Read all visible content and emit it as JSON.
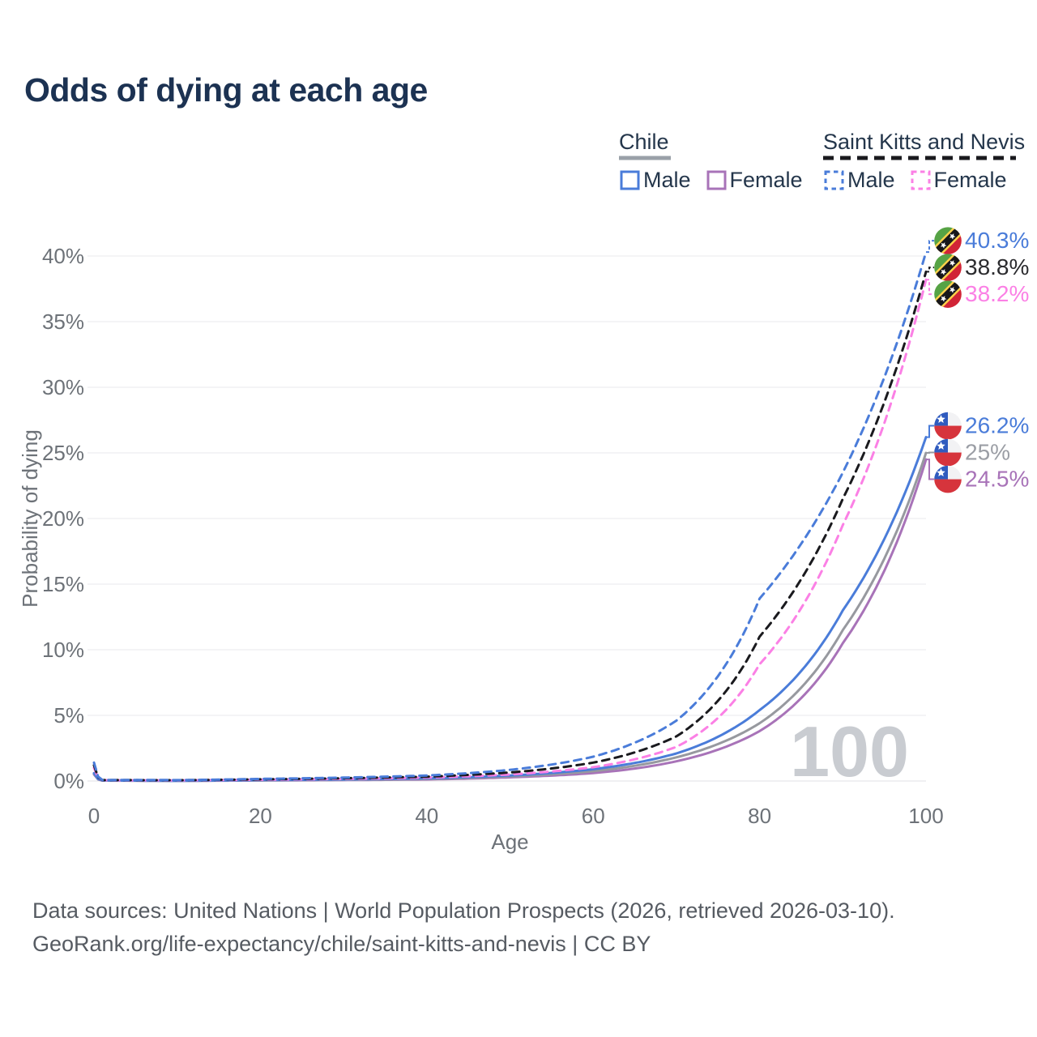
{
  "title": "Odds of dying at each age",
  "legend": {
    "groups": [
      {
        "name": "Chile",
        "line_style": "solid",
        "underline_color": "#9aa0a8",
        "items": [
          {
            "label": "Male",
            "color": "#4a7cd9"
          },
          {
            "label": "Female",
            "color": "#a873b8"
          }
        ]
      },
      {
        "name": "Saint Kitts and Nevis",
        "line_style": "dashed",
        "underline_color": "#1a1a1e",
        "items": [
          {
            "label": "Male",
            "color": "#4a7cd9"
          },
          {
            "label": "Female",
            "color": "#fb80e5"
          }
        ]
      }
    ]
  },
  "chart_data": {
    "type": "line",
    "title": "Odds of dying at each age",
    "xlabel": "Age",
    "ylabel": "Probability of dying",
    "x_ticks": [
      0,
      20,
      40,
      60,
      80,
      100
    ],
    "y_ticks": [
      0,
      5,
      10,
      15,
      20,
      25,
      30,
      35,
      40
    ],
    "y_tick_suffix": "%",
    "xlim": [
      0,
      100
    ],
    "ylim": [
      0,
      41.5
    ],
    "grid": "horizontal",
    "legend_position": "top-right",
    "age_watermark": "100",
    "series": [
      {
        "name": "Chile Female",
        "country": "Chile",
        "sex": "Female",
        "color": "#a873b8",
        "dash": false,
        "flag": "cl",
        "end_label": "24.5%",
        "label_color": "#a873b8",
        "ages": [
          0,
          1,
          10,
          20,
          30,
          40,
          50,
          60,
          70,
          80,
          90,
          100
        ],
        "values": [
          0.5,
          0.03,
          0.015,
          0.04,
          0.07,
          0.12,
          0.28,
          0.6,
          1.5,
          3.8,
          10.5,
          24.5
        ]
      },
      {
        "name": "Chile Both sexes",
        "country": "Chile",
        "sex": "Both",
        "color": "#97999f",
        "dash": false,
        "flag": "cl",
        "end_label": "25%",
        "label_color": "#9b9ea5",
        "ages": [
          0,
          1,
          10,
          20,
          30,
          40,
          50,
          60,
          70,
          80,
          90,
          100
        ],
        "values": [
          0.55,
          0.035,
          0.018,
          0.05,
          0.09,
          0.16,
          0.35,
          0.75,
          1.8,
          4.4,
          11.5,
          25.0
        ]
      },
      {
        "name": "Chile Male",
        "country": "Chile",
        "sex": "Male",
        "color": "#4a7cd9",
        "dash": false,
        "flag": "cl",
        "end_label": "26.2%",
        "label_color": "#4a7cd9",
        "ages": [
          0,
          1,
          10,
          20,
          30,
          40,
          50,
          60,
          70,
          80,
          90,
          100
        ],
        "values": [
          0.6,
          0.04,
          0.02,
          0.07,
          0.12,
          0.2,
          0.42,
          0.9,
          2.1,
          5.4,
          13.0,
          26.2
        ]
      },
      {
        "name": "Saint Kitts and Nevis Female",
        "country": "Saint Kitts and Nevis",
        "sex": "Female",
        "color": "#fb80e5",
        "dash": true,
        "flag": "kn",
        "end_label": "38.2%",
        "label_color": "#fb80e5",
        "ages": [
          0,
          1,
          10,
          20,
          30,
          40,
          50,
          60,
          70,
          80,
          90,
          100
        ],
        "values": [
          1.0,
          0.06,
          0.05,
          0.1,
          0.16,
          0.26,
          0.5,
          1.05,
          2.6,
          8.9,
          19.5,
          38.2
        ]
      },
      {
        "name": "Saint Kitts and Nevis Both sexes",
        "country": "Saint Kitts and Nevis",
        "sex": "Both",
        "color": "#1a1a1e",
        "dash": true,
        "flag": "kn",
        "end_label": "38.8%",
        "label_color": "#2b2b2e",
        "ages": [
          0,
          1,
          10,
          20,
          30,
          40,
          50,
          60,
          70,
          80,
          90,
          100
        ],
        "values": [
          1.2,
          0.07,
          0.06,
          0.13,
          0.21,
          0.33,
          0.65,
          1.4,
          3.4,
          11.0,
          21.5,
          38.8
        ]
      },
      {
        "name": "Saint Kitts and Nevis Male",
        "country": "Saint Kitts and Nevis",
        "sex": "Male",
        "color": "#4a7cd9",
        "dash": true,
        "flag": "kn",
        "end_label": "40.3%",
        "label_color": "#4a7cd9",
        "ages": [
          0,
          1,
          10,
          20,
          30,
          40,
          50,
          60,
          70,
          80,
          90,
          100
        ],
        "values": [
          1.4,
          0.08,
          0.07,
          0.16,
          0.26,
          0.42,
          0.85,
          1.85,
          4.6,
          13.9,
          23.5,
          40.3
        ]
      }
    ]
  },
  "footer": {
    "line1": "Data sources: United Nations | World Population Prospects (2026, retrieved 2026-03-10).",
    "line2": "GeoRank.org/life-expectancy/chile/saint-kitts-and-nevis | CC BY"
  }
}
